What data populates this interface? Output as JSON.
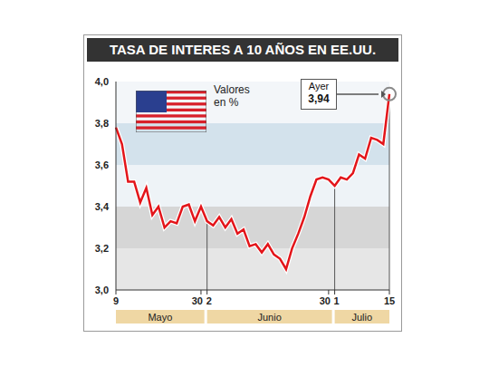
{
  "chart_data": {
    "type": "line",
    "title": "TASA DE INTERES A 10 AÑOS EN EE.UU.",
    "subtitle": "Valores en %",
    "categories": [
      "9",
      null,
      null,
      null,
      null,
      null,
      null,
      null,
      null,
      null,
      null,
      null,
      null,
      null,
      "30",
      "2",
      null,
      null,
      null,
      null,
      null,
      null,
      null,
      null,
      null,
      null,
      null,
      null,
      null,
      null,
      null,
      null,
      null,
      null,
      null,
      "30",
      "1",
      null,
      null,
      null,
      null,
      null,
      null,
      null,
      null,
      "15"
    ],
    "months": [
      "Mayo",
      "Junio",
      "Julio"
    ],
    "values": [
      3.78,
      3.7,
      3.52,
      3.52,
      3.42,
      3.49,
      3.36,
      3.4,
      3.3,
      3.33,
      3.32,
      3.4,
      3.41,
      3.33,
      3.4,
      3.33,
      3.31,
      3.35,
      3.3,
      3.34,
      3.27,
      3.29,
      3.21,
      3.22,
      3.18,
      3.22,
      3.17,
      3.15,
      3.1,
      3.2,
      3.27,
      3.35,
      3.45,
      3.53,
      3.54,
      3.53,
      3.5,
      3.54,
      3.53,
      3.56,
      3.65,
      3.63,
      3.73,
      3.72,
      3.7,
      3.94
    ],
    "color": "#e3151a",
    "ylim": [
      3.0,
      4.0
    ],
    "yticks": [
      {
        "value": 3.0,
        "label": "3,0"
      },
      {
        "value": 3.2,
        "label": "3,2"
      },
      {
        "value": 3.4,
        "label": "3,4"
      },
      {
        "value": 3.6,
        "label": "3,6"
      },
      {
        "value": 3.8,
        "label": "3,8"
      },
      {
        "value": 4.0,
        "label": "4,0"
      }
    ],
    "grid": true,
    "annotation": {
      "text": "Ayer",
      "value": 3.94,
      "value_label": "3,94"
    }
  }
}
